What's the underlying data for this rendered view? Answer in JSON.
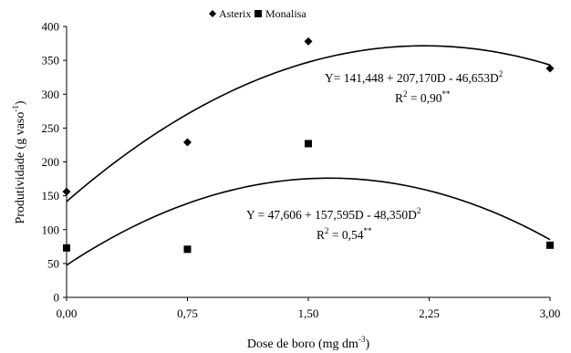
{
  "chart_data": {
    "type": "scatter",
    "xlabel": {
      "main": "Dose de boro (mg dm",
      "sup": "-3",
      "tail": ")"
    },
    "ylabel": {
      "main": "Produtividade (g vaso",
      "sup": "-1",
      "tail": ")"
    },
    "xlim": [
      0,
      3.0
    ],
    "ylim": [
      0,
      400
    ],
    "x_ticks": [
      0,
      0.75,
      1.5,
      2.25,
      3.0
    ],
    "x_tick_labels": [
      "0,00",
      "0,75",
      "1,50",
      "2,25",
      "3,00"
    ],
    "y_ticks": [
      0,
      50,
      100,
      150,
      200,
      250,
      300,
      350,
      400
    ],
    "y_tick_labels": [
      "0",
      "50",
      "100",
      "150",
      "200",
      "250",
      "300",
      "350",
      "400"
    ],
    "legend_position": "top-center",
    "series": [
      {
        "name": "Asterix",
        "marker": "diamond",
        "x": [
          0,
          0.75,
          1.5,
          3.0
        ],
        "y": [
          156,
          229,
          378,
          338
        ],
        "fit": {
          "a": 141.448,
          "b": 207.17,
          "c": -46.653
        },
        "equation": {
          "main": "Y= 141,448 + 207,170D - 46,653D",
          "sup": "2"
        },
        "r2": {
          "lead": "R",
          "sup1": "2",
          "mid": " = 0,90",
          "sup2": "**"
        }
      },
      {
        "name": "Monalisa",
        "marker": "square",
        "x": [
          0,
          0.75,
          1.5,
          3.0
        ],
        "y": [
          73,
          71,
          227,
          77
        ],
        "fit": {
          "a": 47.606,
          "b": 157.595,
          "c": -48.35
        },
        "equation": {
          "main": "Y = 47,606 + 157,595D - 48,350D",
          "sup": "2"
        },
        "r2": {
          "lead": "R",
          "sup1": "2",
          "mid": " = 0,54",
          "sup2": "**"
        }
      }
    ]
  }
}
